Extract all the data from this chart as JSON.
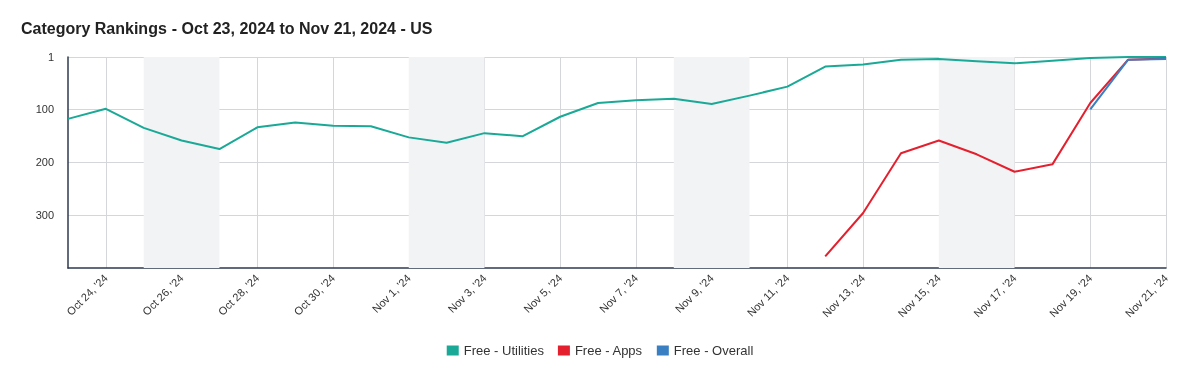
{
  "chart_data": {
    "type": "line",
    "title": "Category Rankings",
    "subtitle": "- Oct 23, 2024 to Nov 21, 2024 - US",
    "x": [
      "2024-10-23",
      "2024-10-24",
      "2024-10-25",
      "2024-10-26",
      "2024-10-27",
      "2024-10-28",
      "2024-10-29",
      "2024-10-30",
      "2024-10-31",
      "2024-11-01",
      "2024-11-02",
      "2024-11-03",
      "2024-11-04",
      "2024-11-05",
      "2024-11-06",
      "2024-11-07",
      "2024-11-08",
      "2024-11-09",
      "2024-11-10",
      "2024-11-11",
      "2024-11-12",
      "2024-11-13",
      "2024-11-14",
      "2024-11-15",
      "2024-11-16",
      "2024-11-17",
      "2024-11-18",
      "2024-11-19",
      "2024-11-20",
      "2024-11-21"
    ],
    "series": [
      {
        "name": "Free - Utilities",
        "color": "#1aa997",
        "values": [
          118,
          99,
          135,
          159,
          175,
          134,
          125,
          131,
          132,
          153,
          163,
          145,
          151,
          114,
          88,
          83,
          80,
          90,
          74,
          57,
          19,
          15,
          6,
          5,
          9,
          13,
          8,
          3,
          1,
          1
        ]
      },
      {
        "name": "Free - Apps",
        "color": "#e4202e",
        "x": [
          "2024-11-12",
          "2024-11-13",
          "2024-11-14",
          "2024-11-15",
          "2024-11-16",
          "2024-11-17",
          "2024-11-18",
          "2024-11-19",
          "2024-11-20",
          "2024-11-21"
        ],
        "values": [
          378,
          296,
          183,
          159,
          185,
          218,
          204,
          88,
          6,
          4
        ]
      },
      {
        "name": "Free - Overall",
        "color": "#3a7fc1",
        "x": [
          "2024-11-19",
          "2024-11-20",
          "2024-11-21"
        ],
        "values": [
          100,
          6,
          5
        ]
      }
    ],
    "xlim": [
      "2024-10-23",
      "2024-11-21"
    ],
    "xticks": [
      {
        "value": "2024-10-24",
        "label": "Oct 24, '24"
      },
      {
        "value": "2024-10-26",
        "label": "Oct 26, '24"
      },
      {
        "value": "2024-10-28",
        "label": "Oct 28, '24"
      },
      {
        "value": "2024-10-30",
        "label": "Oct 30, '24"
      },
      {
        "value": "2024-11-01",
        "label": "Nov 1, '24"
      },
      {
        "value": "2024-11-03",
        "label": "Nov 3, '24"
      },
      {
        "value": "2024-11-05",
        "label": "Nov 5, '24"
      },
      {
        "value": "2024-11-07",
        "label": "Nov 7, '24"
      },
      {
        "value": "2024-11-09",
        "label": "Nov 9, '24"
      },
      {
        "value": "2024-11-11",
        "label": "Nov 11, '24"
      },
      {
        "value": "2024-11-13",
        "label": "Nov 13, '24"
      },
      {
        "value": "2024-11-15",
        "label": "Nov 15, '24"
      },
      {
        "value": "2024-11-17",
        "label": "Nov 17, '24"
      },
      {
        "value": "2024-11-19",
        "label": "Nov 19, '24"
      },
      {
        "value": "2024-11-21",
        "label": "Nov 21, '24"
      }
    ],
    "ylim": [
      400,
      1
    ],
    "yticks": [
      1,
      100,
      200,
      300
    ],
    "bands": [
      {
        "axis": "x",
        "from": "2024-10-25",
        "to": "2024-10-27",
        "color": "#f2f3f5"
      },
      {
        "axis": "x",
        "from": "2024-11-01",
        "to": "2024-11-03",
        "color": "#f2f3f5"
      },
      {
        "axis": "x",
        "from": "2024-11-08",
        "to": "2024-11-10",
        "color": "#f2f3f5"
      },
      {
        "axis": "x",
        "from": "2024-11-15",
        "to": "2024-11-17",
        "color": "#f2f3f5"
      }
    ],
    "grid": true,
    "legend": "bottom",
    "marker": "none",
    "line_style": "solid"
  }
}
